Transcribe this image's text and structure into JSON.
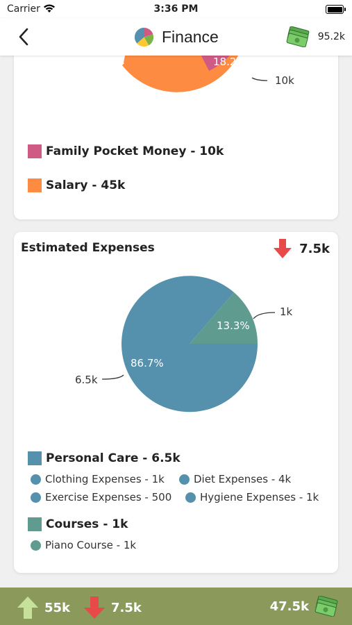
{
  "status_bar": {
    "carrier": "Carrier",
    "time": "3:36 PM"
  },
  "nav": {
    "title": "Finance",
    "balance": "95.2k",
    "back_icon": "chevron-left-icon",
    "logo_icon": "pie-chart-icon",
    "money_icon": "money-stack-icon"
  },
  "income_card": {
    "pie_labels": {
      "percent": "18.2%",
      "callout": "10k"
    },
    "legend": [
      {
        "label": "Family Pocket Money - 10k",
        "color": "#cf5a84"
      },
      {
        "label": "Salary - 45k",
        "color": "#fd8c42"
      }
    ]
  },
  "expenses_card": {
    "title": "Estimated Expenses",
    "total": "7.5k",
    "pie_labels": {
      "small_percent": "13.3%",
      "small_callout": "1k",
      "large_percent": "86.7%",
      "large_callout": "6.5k"
    },
    "categories": [
      {
        "label": "Personal Care - 6.5k",
        "color": "#5591ac",
        "items": [
          "Clothing Expenses - 1k",
          "Diet Expenses - 4k",
          "Exercise Expenses - 500",
          "Hygiene Expenses - 1k"
        ]
      },
      {
        "label": "Courses - 1k",
        "color": "#5f9b8f",
        "items": [
          "Piano Course - 1k"
        ]
      }
    ]
  },
  "bottom_bar": {
    "income": "55k",
    "expenses": "7.5k",
    "balance": "47.5k"
  },
  "colors": {
    "salary": "#fd8c42",
    "family": "#cf5a84",
    "personal_care": "#5591ac",
    "courses": "#5f9b8f",
    "bar_green": "#8b9a5b",
    "arrow_down": "#e84a4a",
    "arrow_up": "#c6e29a"
  }
}
